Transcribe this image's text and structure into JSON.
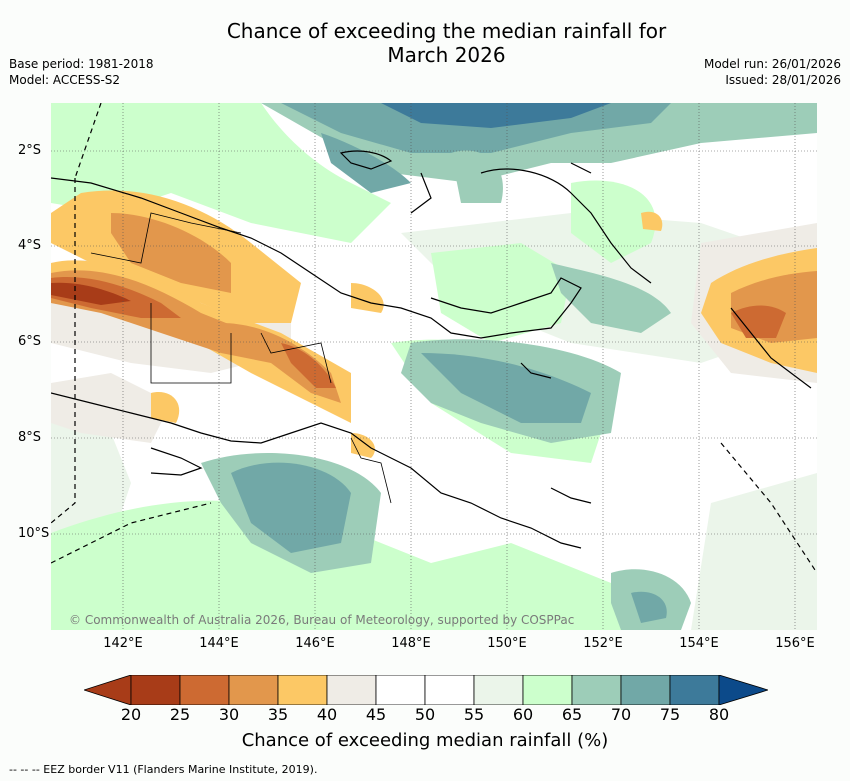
{
  "title_line1": "Chance of exceeding the median rainfall for",
  "title_line2": "March 2026",
  "meta_left": {
    "base_period": "Base period: 1981-2018",
    "model": "Model: ACCESS-S2"
  },
  "meta_right": {
    "model_run": "Model run: 26/01/2026",
    "issued": "Issued: 28/01/2026"
  },
  "map": {
    "lat_labels": [
      "2°S",
      "4°S",
      "6°S",
      "8°S",
      "10°S"
    ],
    "lon_labels": [
      "142°E",
      "144°E",
      "146°E",
      "148°E",
      "150°E",
      "152°E",
      "154°E",
      "156°E"
    ],
    "copyright": "© Commonwealth of Australia 2026, Bureau of Meteorology, supported by COSPPac"
  },
  "legend": {
    "ticks": [
      "20",
      "25",
      "30",
      "35",
      "40",
      "45",
      "50",
      "55",
      "60",
      "65",
      "70",
      "75",
      "80"
    ],
    "colors": [
      "#a83c18",
      "#cd6a32",
      "#e2974c",
      "#fcc865",
      "#efece6",
      "#ffffff",
      "#ffffff",
      "#ebf5ea",
      "#ccffcc",
      "#9dcdb8",
      "#71a8a7",
      "#3d7a9a",
      "#0c4a8a"
    ],
    "title": "Chance of exceeding median rainfall (%)"
  },
  "footnote": "--  --  -- EEZ border V11 (Flanders Marine Institute, 2019)."
}
